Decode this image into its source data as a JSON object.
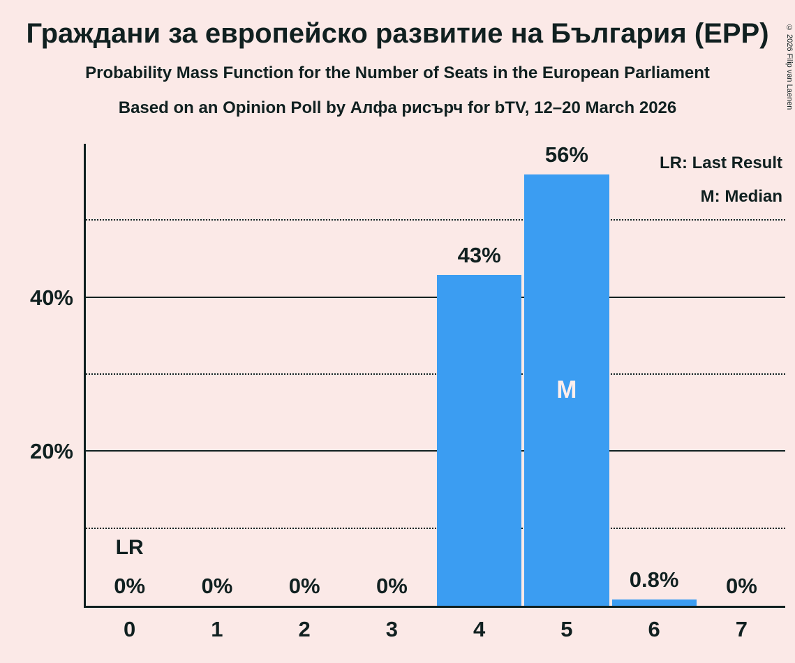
{
  "page": {
    "title": "Граждани за европейско развитие на България (EPP)",
    "subtitle1": "Probability Mass Function for the Number of Seats in the European Parliament",
    "subtitle2": "Based on an Opinion Poll by Алфа рисърч for bTV, 12–20 March 2026",
    "copyright": "© 2026 Filip van Laenen"
  },
  "legend": {
    "last_result": "LR: Last Result",
    "median": "M: Median"
  },
  "chart_data": {
    "type": "bar",
    "title": "Граждани за европейско развитие на България (EPP)",
    "subtitle": "Probability Mass Function for the Number of Seats in the European Parliament",
    "source": "Based on an Opinion Poll by Алфа рисърч for bTV, 12–20 March 2026",
    "xlabel": "",
    "ylabel": "",
    "categories": [
      "0",
      "1",
      "2",
      "3",
      "4",
      "5",
      "6",
      "7"
    ],
    "values": [
      0,
      0,
      0,
      0,
      43,
      56,
      0.8,
      0
    ],
    "value_labels": [
      "0%",
      "0%",
      "0%",
      "0%",
      "43%",
      "56%",
      "0.8%",
      "0%"
    ],
    "ylim": [
      0,
      60
    ],
    "yticks": [
      {
        "value": 20,
        "label": "20%"
      },
      {
        "value": 40,
        "label": "40%"
      }
    ],
    "gridlines": [
      {
        "value": 10,
        "style": "dotted"
      },
      {
        "value": 20,
        "style": "solid"
      },
      {
        "value": 30,
        "style": "dotted"
      },
      {
        "value": 40,
        "style": "solid"
      },
      {
        "value": 50,
        "style": "dotted"
      }
    ],
    "annotations": {
      "last_result_seat": 0,
      "last_result_label": "LR",
      "median_seat": 5,
      "median_label": "M"
    },
    "bar_color": "#3b9df2",
    "legend_position": "top-right",
    "grid": true
  },
  "colors": {
    "background": "#fbe9e7",
    "bar": "#3b9df2",
    "text": "#102020",
    "median_text": "#fdeeec"
  }
}
